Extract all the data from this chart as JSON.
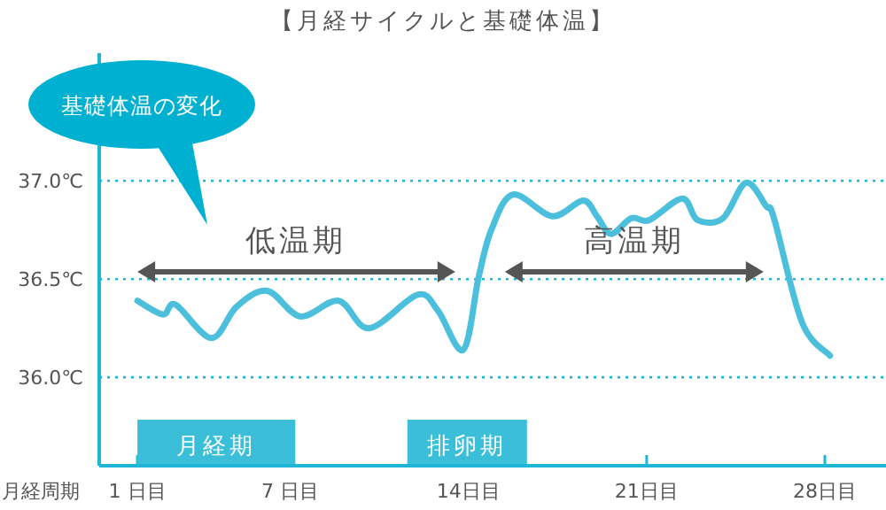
{
  "chart_data": {
    "type": "line",
    "title": "【月経サイクルと基礎体温】",
    "xlabel": "月経周期",
    "x": [
      1,
      2,
      2.5,
      3.9,
      4.9,
      6.1,
      7.4,
      8.9,
      10.1,
      12.0,
      12.8,
      13.8,
      14.4,
      14.9,
      15.75,
      17.3,
      18.5,
      19.05,
      19.6,
      20.4,
      21.1,
      22.4,
      23.0,
      24.0,
      24.9,
      25.7,
      26.0,
      27.1,
      28.2
    ],
    "series": [
      {
        "color": "#4bbfdc",
        "values": [
          36.39,
          36.32,
          36.37,
          36.2,
          36.36,
          36.44,
          36.31,
          36.39,
          36.25,
          36.42,
          36.34,
          36.14,
          36.51,
          36.75,
          36.93,
          36.82,
          36.9,
          36.82,
          36.73,
          36.81,
          36.8,
          36.91,
          36.8,
          36.81,
          36.99,
          36.87,
          36.81,
          36.28,
          36.11
        ]
      }
    ],
    "xlim": [
      -0.5,
      30.4
    ],
    "ylim": [
      35.55,
      37.65
    ],
    "xticks": [
      {
        "value": 1,
        "label": "1 日目"
      },
      {
        "value": 7,
        "label": "7 日目"
      },
      {
        "value": 14,
        "label": "14日目"
      },
      {
        "value": 21,
        "label": "21日目"
      },
      {
        "value": 28,
        "label": "28日目"
      }
    ],
    "yticks": [
      {
        "value": 36.0,
        "label": "36.0℃"
      },
      {
        "value": 36.5,
        "label": "36.5℃"
      },
      {
        "value": 37.0,
        "label": "37.0℃"
      }
    ],
    "grid": "y",
    "bands": [
      {
        "axis": "x",
        "from": 1,
        "to": 7.2,
        "label": "月経期",
        "color": "#3bbfd9"
      },
      {
        "axis": "x",
        "from": 11.6,
        "to": 16.3,
        "label": "排卵期",
        "color": "#3bbfd9"
      }
    ],
    "annotations": [
      "基礎体温の変化",
      "低温期",
      "高温期"
    ]
  }
}
